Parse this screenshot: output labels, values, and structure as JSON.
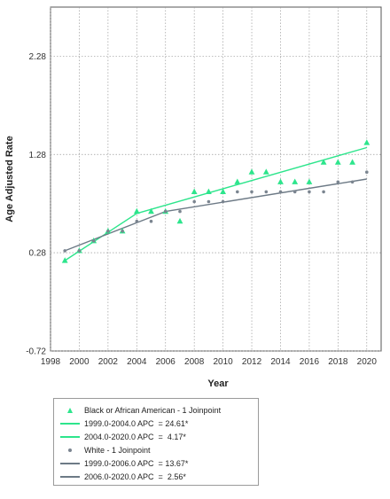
{
  "chart_data": {
    "type": "scatter",
    "xlabel": "Year",
    "ylabel": "Age Adjusted Rate",
    "xlim": [
      1998,
      2021
    ],
    "ylim": [
      -0.72,
      2.78
    ],
    "x_ticks": [
      1998,
      2000,
      2002,
      2004,
      2006,
      2008,
      2010,
      2012,
      2014,
      2016,
      2018,
      2020
    ],
    "y_ticks": [
      -0.72,
      0.28,
      1.28,
      2.28
    ],
    "y_tick_labels": [
      "-0.72",
      "0.28",
      "1.28",
      "2.28"
    ],
    "grid": true,
    "series": [
      {
        "name": "Black or African American - 1 Joinpoint",
        "marker": "triangle",
        "color": "#2de58c",
        "x": [
          1999,
          2000,
          2001,
          2002,
          2003,
          2004,
          2005,
          2006,
          2007,
          2008,
          2009,
          2010,
          2011,
          2012,
          2013,
          2014,
          2015,
          2016,
          2017,
          2018,
          2019,
          2020
        ],
        "y": [
          0.2,
          0.3,
          0.4,
          0.5,
          0.5,
          0.7,
          0.7,
          0.7,
          0.6,
          0.9,
          0.9,
          0.9,
          1.0,
          1.1,
          1.1,
          1.0,
          1.0,
          1.0,
          1.2,
          1.2,
          1.2,
          1.4
        ]
      },
      {
        "name": "1999.0-2004.0 APC  = 24.61*",
        "type": "line",
        "color": "#2de58c",
        "x": [
          1999,
          2004
        ],
        "y": [
          0.2,
          0.68
        ]
      },
      {
        "name": "2004.0-2020.0 APC  =  4.17*",
        "type": "line",
        "color": "#2de58c",
        "x": [
          2004,
          2020
        ],
        "y": [
          0.68,
          1.35
        ]
      },
      {
        "name": "White - 1 Joinpoint",
        "marker": "dot",
        "color": "#7b8590",
        "x": [
          1999,
          2000,
          2001,
          2002,
          2003,
          2004,
          2005,
          2006,
          2007,
          2008,
          2009,
          2010,
          2011,
          2012,
          2013,
          2014,
          2015,
          2016,
          2017,
          2018,
          2019,
          2020
        ],
        "y": [
          0.3,
          0.3,
          0.4,
          0.5,
          0.5,
          0.6,
          0.6,
          0.7,
          0.7,
          0.8,
          0.8,
          0.8,
          0.9,
          0.9,
          0.9,
          0.9,
          0.9,
          0.9,
          0.9,
          1.0,
          1.0,
          1.1
        ]
      },
      {
        "name": "1999.0-2006.0 APC  = 13.67*",
        "type": "line",
        "color": "#6d7a86",
        "x": [
          1999,
          2006
        ],
        "y": [
          0.3,
          0.7
        ]
      },
      {
        "name": "2006.0-2020.0 APC  =  2.56*",
        "type": "line",
        "color": "#6d7a86",
        "x": [
          2006,
          2020
        ],
        "y": [
          0.7,
          1.03
        ]
      }
    ],
    "legend_position": "bottom-left"
  },
  "legend": {
    "items": [
      {
        "label": "Black or African American - 1 Joinpoint",
        "key": "triangle",
        "color": "#2de58c"
      },
      {
        "label": "1999.0-2004.0 APC  = 24.61*",
        "key": "line",
        "color": "#2de58c"
      },
      {
        "label": "2004.0-2020.0 APC  =  4.17*",
        "key": "line",
        "color": "#2de58c"
      },
      {
        "label": "White - 1 Joinpoint",
        "key": "dot",
        "color": "#7b8590"
      },
      {
        "label": "1999.0-2006.0 APC  = 13.67*",
        "key": "line",
        "color": "#6d7a86"
      },
      {
        "label": "2006.0-2020.0 APC  =  2.56*",
        "key": "line",
        "color": "#6d7a86"
      }
    ]
  }
}
